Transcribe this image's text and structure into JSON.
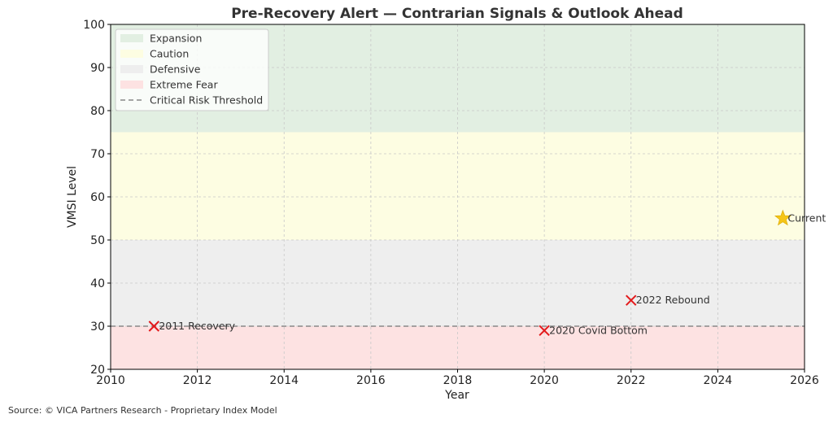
{
  "chart_data": {
    "type": "scatter",
    "title": "Pre-Recovery Alert — Contrarian Signals & Outlook Ahead",
    "xlabel": "Year",
    "ylabel": "VMSI Level",
    "xlim": [
      2010,
      2026
    ],
    "ylim": [
      20,
      100
    ],
    "x_ticks": [
      "2010",
      "2012",
      "2014",
      "2016",
      "2018",
      "2020",
      "2022",
      "2024",
      "2026"
    ],
    "y_ticks": [
      "20",
      "30",
      "40",
      "50",
      "60",
      "70",
      "80",
      "90",
      "100"
    ],
    "grid": true,
    "legend_position": "top-left",
    "zones": [
      {
        "name": "Expansion",
        "y0": 75,
        "y1": 100,
        "color": "#e2efe2"
      },
      {
        "name": "Caution",
        "y0": 50,
        "y1": 75,
        "color": "#fdfde2"
      },
      {
        "name": "Defensive",
        "y0": 30,
        "y1": 50,
        "color": "#eeeeee"
      },
      {
        "name": "Extreme Fear",
        "y0": 20,
        "y1": 30,
        "color": "#fde2e2"
      }
    ],
    "threshold": {
      "name": "Critical Risk Threshold",
      "y": 30,
      "color": "#888888"
    },
    "points": [
      {
        "label": "2011 Recovery",
        "x": 2011,
        "y": 30,
        "marker": "x",
        "color": "#e31a1c"
      },
      {
        "label": "2020 Covid Bottom",
        "x": 2020,
        "y": 29,
        "marker": "x",
        "color": "#e31a1c"
      },
      {
        "label": "2022 Rebound",
        "x": 2022,
        "y": 36,
        "marker": "x",
        "color": "#e31a1c"
      },
      {
        "label": "Current",
        "x": 2025.5,
        "y": 55,
        "marker": "star",
        "color": "#f5c518"
      }
    ]
  },
  "source": "Source: © VICA Partners Research - Proprietary Index Model"
}
